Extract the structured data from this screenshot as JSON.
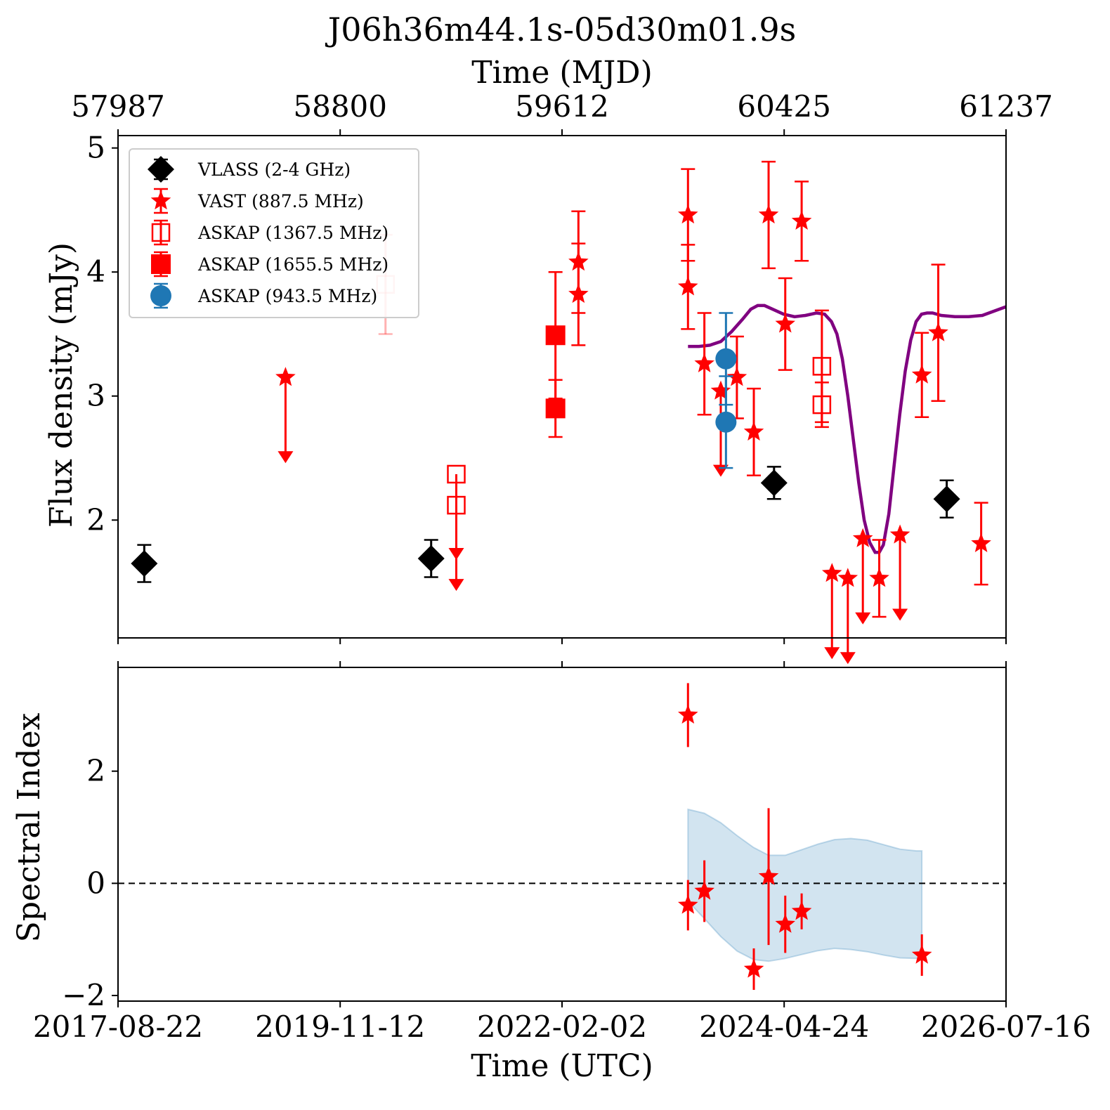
{
  "chart_data": {
    "title": "J06h36m44.1s-05d30m01.9s",
    "top_axis": {
      "label": "Time (MJD)",
      "ticks": [
        {
          "mjd": 57987,
          "label": "57987"
        },
        {
          "mjd": 58800,
          "label": "58800"
        },
        {
          "mjd": 59612,
          "label": "59612"
        },
        {
          "mjd": 60425,
          "label": "60425"
        },
        {
          "mjd": 61237,
          "label": "61237"
        }
      ]
    },
    "bottom_axis": {
      "label": "Time (UTC)",
      "ticks": [
        {
          "mjd": 57987,
          "label": "2017-08-22"
        },
        {
          "mjd": 58800,
          "label": "2019-11-12"
        },
        {
          "mjd": 59612,
          "label": "2022-02-02"
        },
        {
          "mjd": 60425,
          "label": "2024-04-24"
        },
        {
          "mjd": 61237,
          "label": "2026-07-16"
        }
      ]
    },
    "xlim_mjd": [
      57987,
      61237
    ],
    "panels": [
      {
        "type": "scatter",
        "ylabel": "Flux density (mJy)",
        "ylim": [
          1.05,
          5.1
        ],
        "yticks": [
          2,
          3,
          4,
          5
        ],
        "legend_position": "upper-left",
        "series": [
          {
            "name": "VLASS (2-4 GHz)",
            "marker": "diamond",
            "color": "#000000",
            "fill": true,
            "points": [
              {
                "x": 58083,
                "y": 1.65,
                "err": 0.15
              },
              {
                "x": 59133,
                "y": 1.69,
                "err": 0.15
              },
              {
                "x": 60388,
                "y": 2.3,
                "err": 0.13
              },
              {
                "x": 61020,
                "y": 2.17,
                "err": 0.15
              }
            ]
          },
          {
            "name": "VAST (887.5 MHz)",
            "marker": "star",
            "color": "#ff0000",
            "fill": true,
            "points": [
              {
                "x": 58600,
                "y": 3.15,
                "upper_limit": true
              },
              {
                "x": 59672,
                "y": 4.08,
                "err": 0.41
              },
              {
                "x": 59672,
                "y": 3.82,
                "err": 0.41
              },
              {
                "x": 60073,
                "y": 4.46,
                "err": 0.37
              },
              {
                "x": 60073,
                "y": 3.88,
                "err": 0.34
              },
              {
                "x": 60133,
                "y": 3.26,
                "err": 0.41
              },
              {
                "x": 60193,
                "y": 3.04,
                "upper_limit": true
              },
              {
                "x": 60252,
                "y": 3.15,
                "err": 0.33
              },
              {
                "x": 60314,
                "y": 2.71,
                "err": 0.35
              },
              {
                "x": 60368,
                "y": 4.46,
                "err": 0.43
              },
              {
                "x": 60429,
                "y": 3.58,
                "err": 0.37
              },
              {
                "x": 60489,
                "y": 4.41,
                "err": 0.32
              },
              {
                "x": 60600,
                "y": 1.57,
                "upper_limit": true
              },
              {
                "x": 60658,
                "y": 1.53,
                "upper_limit": true
              },
              {
                "x": 60713,
                "y": 1.85,
                "upper_limit": true
              },
              {
                "x": 60773,
                "y": 1.53,
                "err": 0.31
              },
              {
                "x": 60849,
                "y": 1.88,
                "upper_limit": true
              },
              {
                "x": 60929,
                "y": 3.17,
                "err": 0.34
              },
              {
                "x": 60989,
                "y": 3.51,
                "err": 0.55
              },
              {
                "x": 61146,
                "y": 1.81,
                "err": 0.33
              }
            ]
          },
          {
            "name": "ASKAP (1367.5 MHz)",
            "marker": "square",
            "color": "#ff0000",
            "fill": false,
            "points": [
              {
                "x": 58966,
                "y": 3.9,
                "err": 0.4,
                "faded": true
              },
              {
                "x": 59225,
                "y": 2.37,
                "upper_limit": true
              },
              {
                "x": 59225,
                "y": 2.12,
                "upper_limit": true
              },
              {
                "x": 60563,
                "y": 3.24,
                "err": 0.45
              },
              {
                "x": 60563,
                "y": 2.93,
                "err": 0.18
              }
            ]
          },
          {
            "name": "ASKAP (1655.5 MHz)",
            "marker": "square",
            "color": "#ff0000",
            "fill": true,
            "points": [
              {
                "x": 59588,
                "y": 3.49,
                "err": 0.51
              },
              {
                "x": 59588,
                "y": 2.9,
                "err": 0.23
              }
            ]
          },
          {
            "name": "ASKAP (943.5 MHz)",
            "marker": "circle",
            "color": "#1f77b4",
            "fill": true,
            "points": [
              {
                "x": 60212,
                "y": 3.3,
                "err": 0.37
              },
              {
                "x": 60212,
                "y": 2.79,
                "err": 0.37
              }
            ]
          }
        ],
        "model_curve": {
          "color": "#800080",
          "x": [
            60073,
            60113,
            60153,
            60193,
            60233,
            60273,
            60303,
            60328,
            60353,
            60383,
            60423,
            60463,
            60503,
            60543,
            60573,
            60598,
            60618,
            60638,
            60658,
            60678,
            60698,
            60718,
            60738,
            60758,
            60773,
            60788,
            60808,
            60828,
            60848,
            60868,
            60888,
            60908,
            60928,
            60948,
            60968,
            61000,
            61050,
            61100,
            61150,
            61200,
            61237
          ],
          "y": [
            3.4,
            3.4,
            3.41,
            3.44,
            3.52,
            3.62,
            3.7,
            3.73,
            3.73,
            3.7,
            3.66,
            3.64,
            3.65,
            3.67,
            3.66,
            3.6,
            3.5,
            3.3,
            3.0,
            2.65,
            2.3,
            2.0,
            1.82,
            1.74,
            1.74,
            1.8,
            2.05,
            2.45,
            2.85,
            3.2,
            3.45,
            3.6,
            3.66,
            3.67,
            3.67,
            3.65,
            3.64,
            3.64,
            3.65,
            3.69,
            3.72
          ]
        }
      },
      {
        "type": "scatter",
        "ylabel": "Spectral Index",
        "ylim": [
          -2.1,
          3.85
        ],
        "yticks": [
          {
            "value": -2,
            "label": "−2"
          },
          {
            "value": 0,
            "label": "0"
          },
          {
            "value": 2,
            "label": "2"
          }
        ],
        "reference_line": {
          "y": 0,
          "style": "dashed",
          "color": "#000000"
        },
        "band": {
          "color": "#1f77b4",
          "x": [
            60073,
            60133,
            60193,
            60253,
            60313,
            60368,
            60429,
            60489,
            60549,
            60609,
            60669,
            60729,
            60789,
            60849,
            60909,
            60929
          ],
          "upper": [
            1.32,
            1.25,
            1.08,
            0.85,
            0.64,
            0.5,
            0.5,
            0.6,
            0.7,
            0.78,
            0.8,
            0.77,
            0.69,
            0.61,
            0.58,
            0.58
          ],
          "lower": [
            -0.32,
            -0.63,
            -0.95,
            -1.21,
            -1.36,
            -1.39,
            -1.34,
            -1.27,
            -1.2,
            -1.16,
            -1.18,
            -1.22,
            -1.28,
            -1.33,
            -1.34,
            -1.33
          ]
        },
        "series": [
          {
            "name": "VAST (887.5 MHz)",
            "marker": "star",
            "color": "#ff0000",
            "fill": true,
            "points": [
              {
                "x": 60073,
                "y": 3.0,
                "err": 0.57
              },
              {
                "x": 60073,
                "y": -0.39,
                "err": 0.45
              },
              {
                "x": 60133,
                "y": -0.14,
                "err": 0.55
              },
              {
                "x": 60314,
                "y": -1.53,
                "err": 0.37
              },
              {
                "x": 60368,
                "y": 0.12,
                "err": 1.22
              },
              {
                "x": 60429,
                "y": -0.73,
                "err": 0.51
              },
              {
                "x": 60489,
                "y": -0.5,
                "err": 0.32
              },
              {
                "x": 60929,
                "y": -1.28,
                "err": 0.37
              }
            ]
          }
        ]
      }
    ]
  }
}
